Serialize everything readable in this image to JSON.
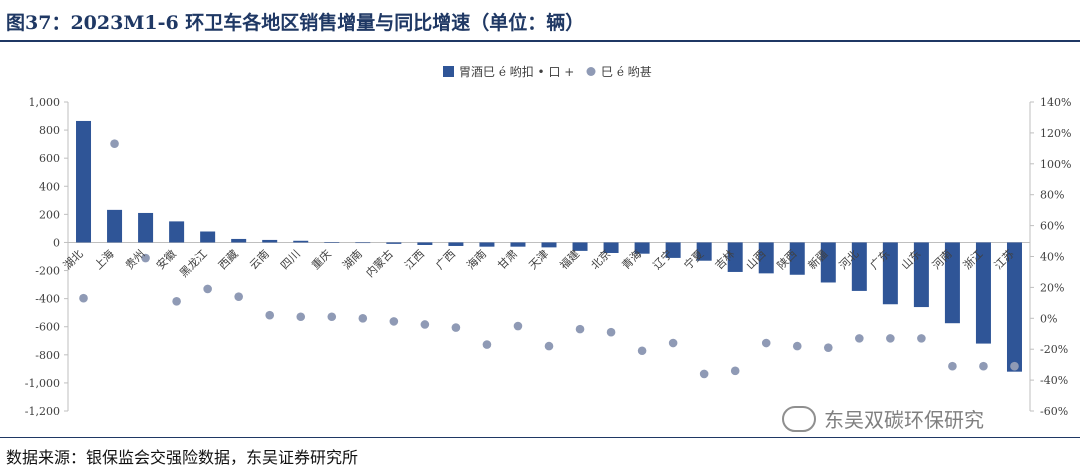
{
  "title": "图37：2023M1-6 环卫车各地区销售增量与同比增速（单位：辆）",
  "source": "数据来源：银保监会交强险数据，东吴证券研究所",
  "watermark": "东吴双碳环保研究",
  "colors": {
    "bar": "#2f5597",
    "dot": "#8f9ab5",
    "title": "#1f3864"
  },
  "chart_data": {
    "type": "bar",
    "categories": [
      "湖北",
      "上海",
      "贵州",
      "安徽",
      "黑龙江",
      "西藏",
      "云南",
      "四川",
      "重庆",
      "湖南",
      "内蒙古",
      "江西",
      "广西",
      "海南",
      "甘肃",
      "天津",
      "福建",
      "北京",
      "青海",
      "辽宁",
      "宁夏",
      "吉林",
      "山西",
      "陕西",
      "新疆",
      "河北",
      "广东",
      "山东",
      "河南",
      "浙江",
      "江苏"
    ],
    "series": [
      {
        "name": "胃酒巳 é 哟扣 • 口 +",
        "type": "bar",
        "axis": "left",
        "values": [
          865,
          232,
          210,
          150,
          78,
          25,
          18,
          12,
          3,
          0,
          -10,
          -18,
          -25,
          -30,
          -30,
          -35,
          -60,
          -75,
          -80,
          -110,
          -130,
          -210,
          -220,
          -230,
          -285,
          -345,
          -440,
          -460,
          -575,
          -720,
          -920
        ]
      },
      {
        "name": "巳 é 哟甚",
        "type": "scatter",
        "axis": "right",
        "values": [
          13,
          113,
          39,
          11,
          19,
          14,
          2,
          1,
          1,
          0,
          -2,
          -4,
          -6,
          -17,
          -5,
          -18,
          -7,
          -9,
          -21,
          -16,
          -36,
          -34,
          -16,
          -18,
          -19,
          -13,
          -13,
          -13,
          -31,
          -31,
          -31
        ]
      }
    ],
    "y_left": {
      "min": -1200,
      "max": 1000,
      "ticks": [
        "1,000",
        "800",
        "600",
        "400",
        "200",
        "0",
        "-200",
        "-400",
        "-600",
        "-800",
        "-1,000",
        "-1,200"
      ]
    },
    "y_right": {
      "min": -60,
      "max": 140,
      "ticks": [
        "140%",
        "120%",
        "100%",
        "80%",
        "60%",
        "40%",
        "20%",
        "0%",
        "-20%",
        "-40%",
        "-60%"
      ]
    },
    "legend_position": "top-center",
    "grid": false
  }
}
